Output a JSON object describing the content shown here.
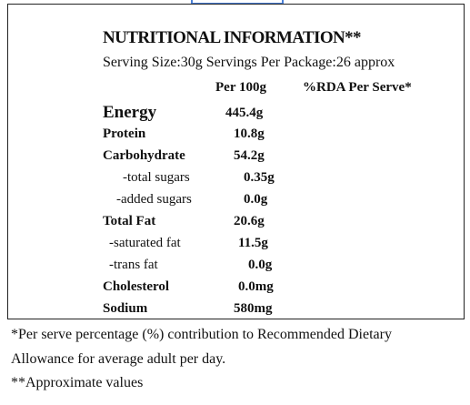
{
  "title": "NUTRITIONAL INFORMATION**",
  "serving": "Serving Size:30g Servings Per Package:26 approx",
  "table": {
    "headers": [
      "Per 100g",
      "%RDA Per Serve*"
    ],
    "rows": [
      {
        "label": "Energy",
        "per_100g": "445.4g"
      },
      {
        "label": "Protein",
        "per_100g": "10.8g"
      },
      {
        "label": "Carbohydrate",
        "per_100g": "54.2g"
      },
      {
        "label": "-total sugars",
        "per_100g": "0.35g"
      },
      {
        "label": "-added sugars",
        "per_100g": "0.0g"
      },
      {
        "label": "Total Fat",
        "per_100g": "20.6g"
      },
      {
        "label": "-saturated fat",
        "per_100g": "11.5g"
      },
      {
        "label": "-trans fat",
        "per_100g": "0.0g"
      },
      {
        "label": "Cholesterol",
        "per_100g": "0.0mg"
      },
      {
        "label": "Sodium",
        "per_100g": "580mg"
      }
    ]
  },
  "footnotes": [
    "*Per serve percentage (%) contribution to Recommended Dietary",
    "Allowance for average adult per day.",
    "**Approximate values"
  ]
}
